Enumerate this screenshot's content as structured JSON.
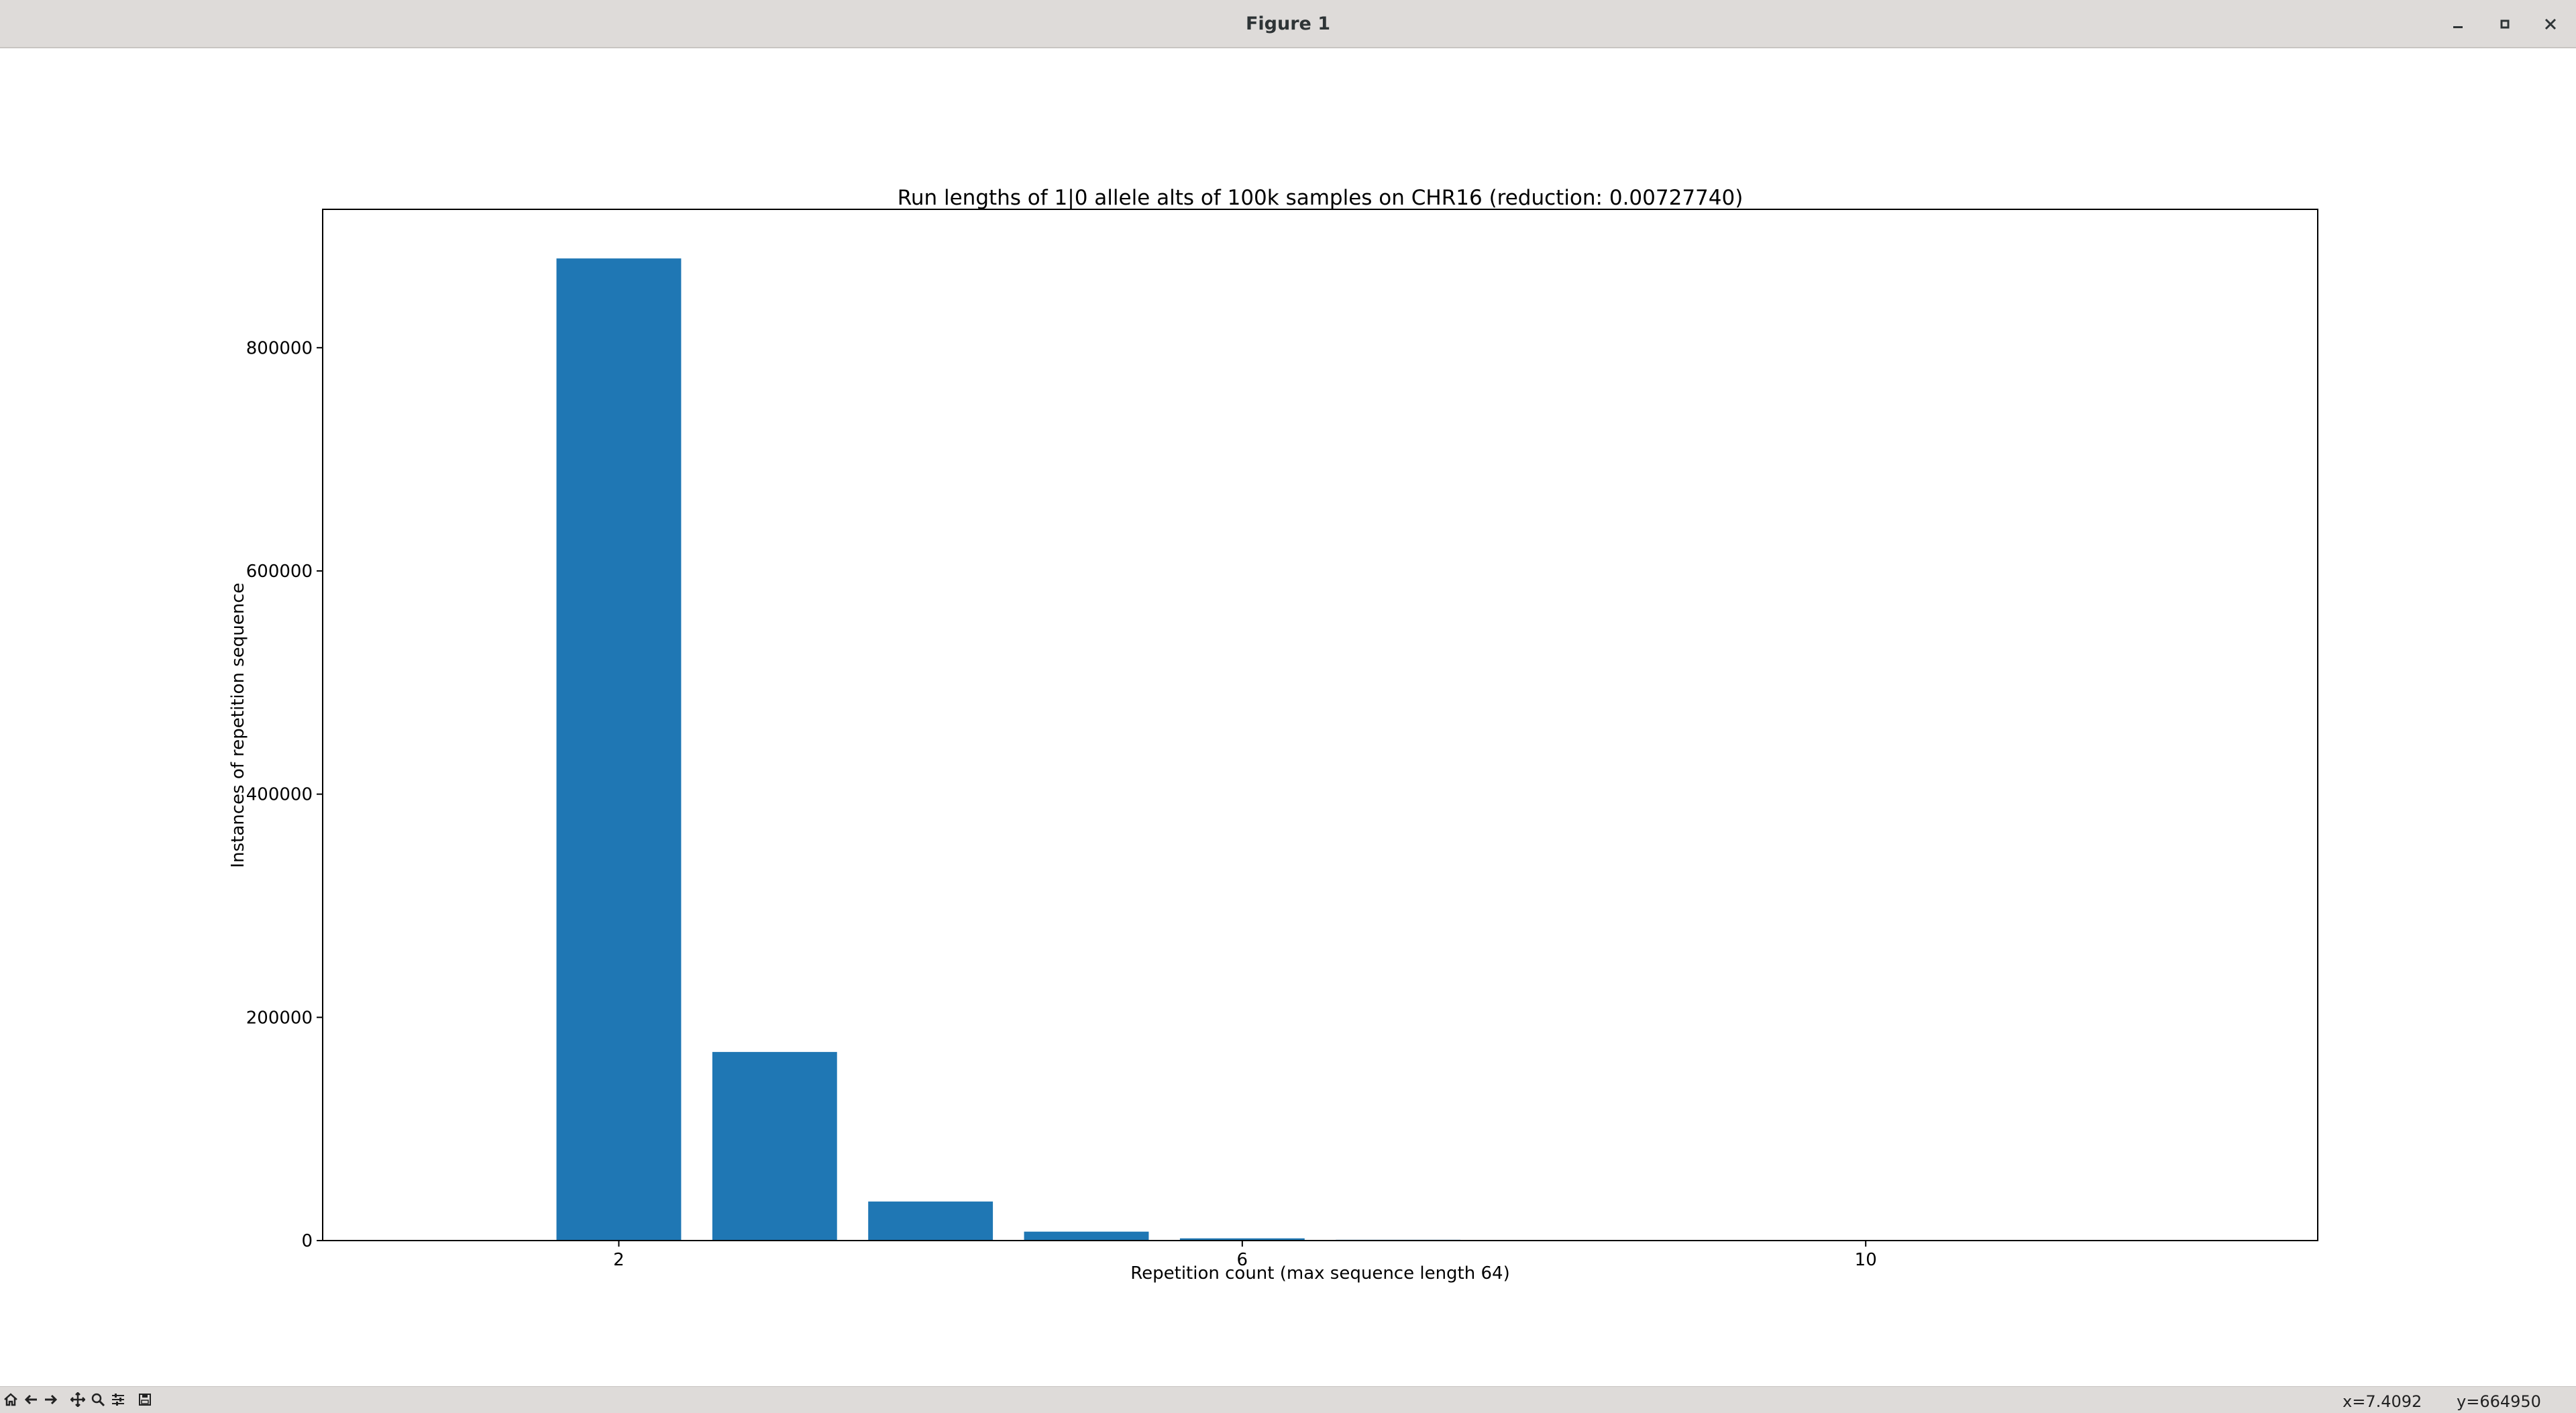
{
  "window": {
    "title": "Figure 1",
    "controls": [
      "minimize-icon",
      "maximize-icon",
      "close-icon"
    ]
  },
  "chart_data": {
    "type": "bar",
    "title": "Run lengths of 1|0 allele alts of 100k samples on CHR16 (reduction: 0.00727740)",
    "xlabel": "Repetition count (max sequence length 64)",
    "ylabel": "Instances of repetition sequence",
    "x": [
      2,
      3,
      4,
      5,
      6,
      7,
      8
    ],
    "values": [
      880000,
      169000,
      35000,
      8000,
      2000,
      700,
      300
    ],
    "xlim": [
      0.1,
      12.9
    ],
    "ylim": [
      0,
      924000
    ],
    "xticks": [
      2,
      6,
      10
    ],
    "yticks": [
      0,
      200000,
      400000,
      600000,
      800000
    ],
    "bar_color": "#1f77b4",
    "grid": false,
    "legend": "none"
  },
  "toolbar": {
    "buttons": [
      "home-icon",
      "back-icon",
      "forward-icon",
      "pan-icon",
      "zoom-icon",
      "configure-subplots-icon",
      "save-icon"
    ]
  },
  "status": {
    "x": "x=7.4092",
    "y": "y=664950"
  }
}
